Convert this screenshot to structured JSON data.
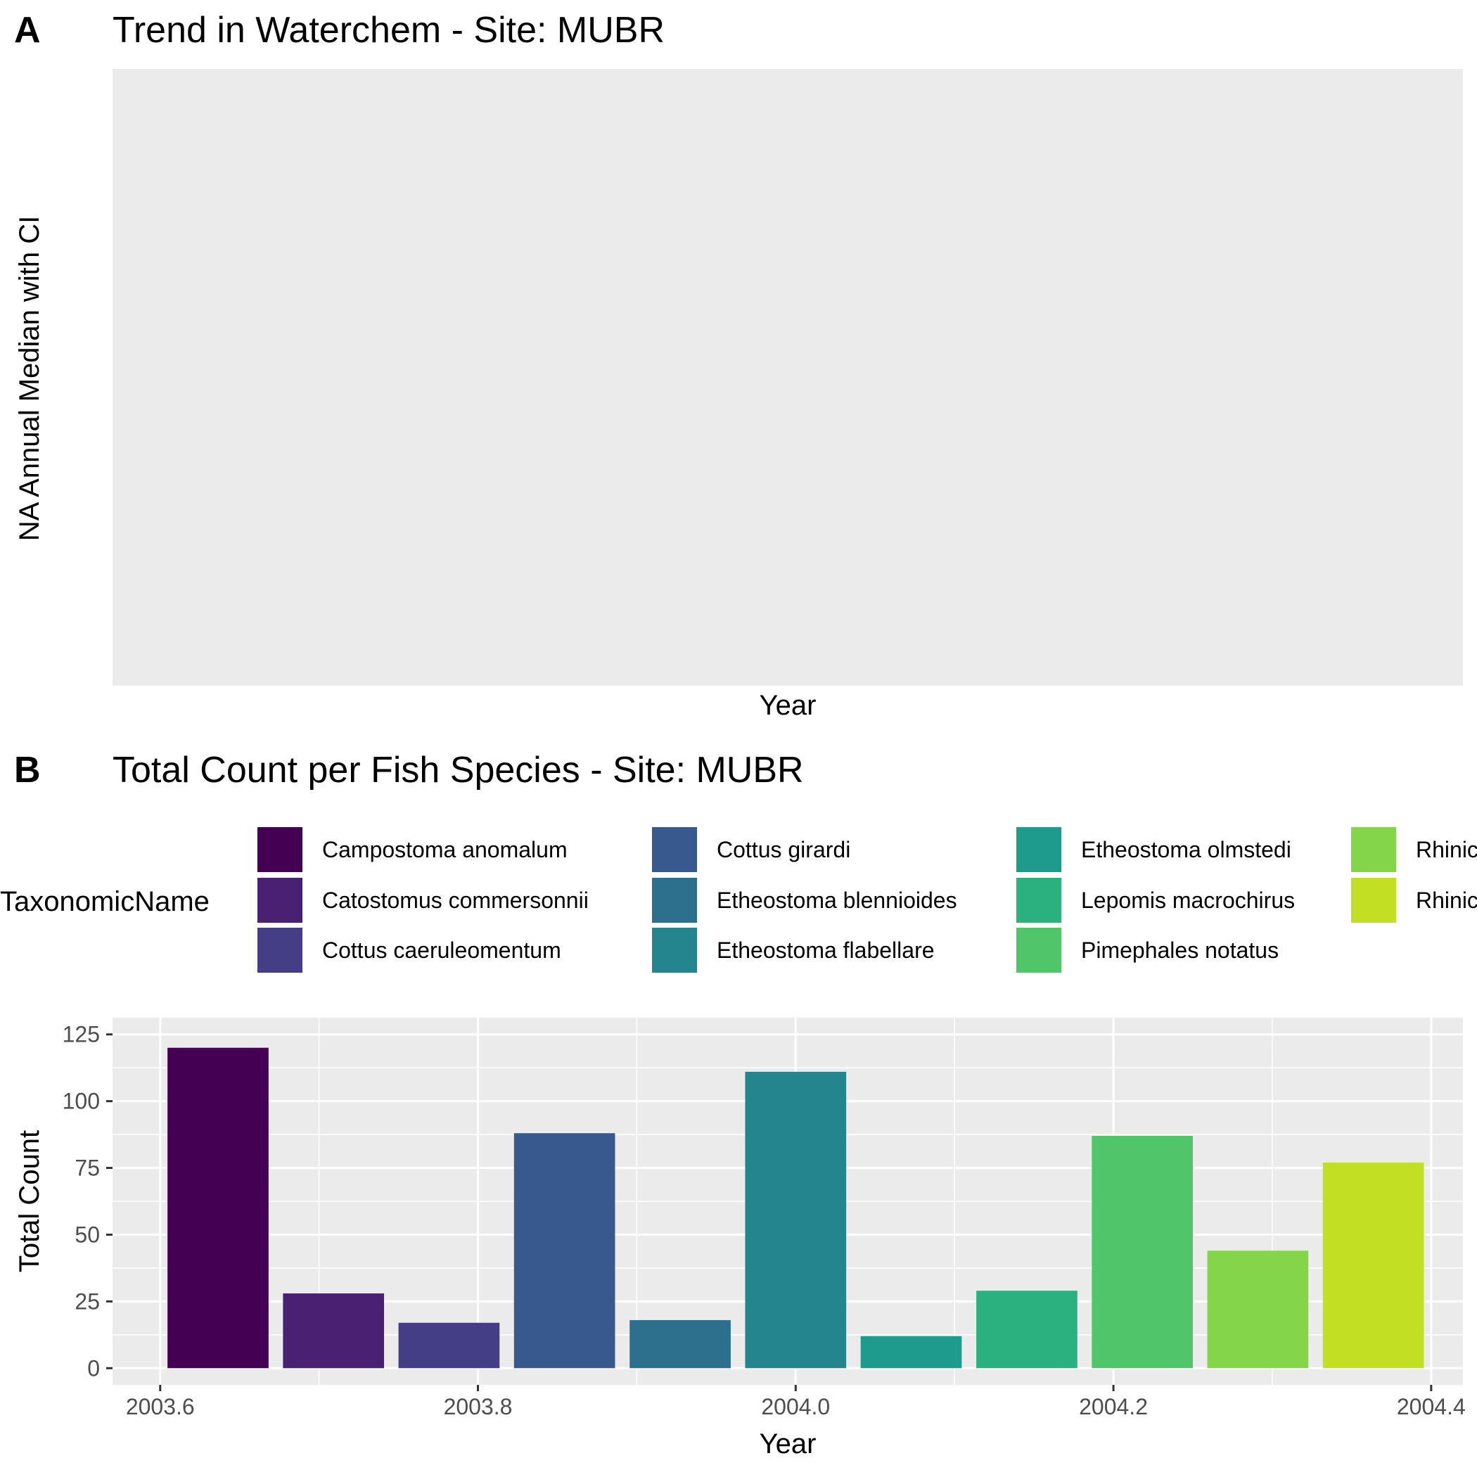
{
  "panel_a": {
    "tag": "A",
    "title": "Trend in Waterchem - Site: MUBR",
    "ylabel": "NA Annual Median with CI",
    "xlabel": "Year"
  },
  "panel_b": {
    "tag": "B",
    "title": "Total Count per Fish Species - Site: MUBR",
    "legend_title": "TaxonomicName",
    "legend_items": [
      {
        "label": "Campostoma anomalum",
        "color": "#440154"
      },
      {
        "label": "Catostomus commersonnii",
        "color": "#482173"
      },
      {
        "label": "Cottus caeruleomentum",
        "color": "#433E85"
      },
      {
        "label": "Cottus girardi",
        "color": "#38598C"
      },
      {
        "label": "Etheostoma blennioides",
        "color": "#2D708E"
      },
      {
        "label": "Etheostoma flabellare",
        "color": "#25858E"
      },
      {
        "label": "Etheostoma olmstedi",
        "color": "#1E9B8A"
      },
      {
        "label": "Lepomis macrochirus",
        "color": "#2BB07F"
      },
      {
        "label": "Pimephales notatus",
        "color": "#51C56A"
      },
      {
        "label": "Rhinic",
        "color": "#85D54A"
      },
      {
        "label": "Rhinic",
        "color": "#C2DF23"
      }
    ]
  },
  "chart_data": [
    {
      "type": "line",
      "title": "Trend in Waterchem - Site: MUBR",
      "xlabel": "Year",
      "ylabel": "NA Annual Median with CI",
      "series": [],
      "grid": false
    },
    {
      "type": "bar",
      "title": "Total Count per Fish Species - Site: MUBR",
      "xlabel": "Year",
      "ylabel": "Total Count",
      "xlim": [
        2003.57,
        2004.42
      ],
      "ylim": [
        0,
        125
      ],
      "x_ticks": [
        "2003.6",
        "2003.8",
        "2004.0",
        "2004.2",
        "2004.4"
      ],
      "y_ticks": [
        "0",
        "25",
        "50",
        "75",
        "100",
        "125"
      ],
      "bar_width": 0.0636,
      "legend_title": "TaxonomicName",
      "legend_position": "top",
      "bars": [
        {
          "x": 2003.6364,
          "value": 120,
          "color": "#440154"
        },
        {
          "x": 2003.7091,
          "value": 28,
          "color": "#482173"
        },
        {
          "x": 2003.7818,
          "value": 17,
          "color": "#433E85"
        },
        {
          "x": 2003.8545,
          "value": 88,
          "color": "#38598C"
        },
        {
          "x": 2003.9273,
          "value": 18,
          "color": "#2D708E"
        },
        {
          "x": 2004.0,
          "value": 111,
          "color": "#25858E"
        },
        {
          "x": 2004.0727,
          "value": 12,
          "color": "#1E9B8A"
        },
        {
          "x": 2004.1455,
          "value": 29,
          "color": "#2BB07F"
        },
        {
          "x": 2004.2182,
          "value": 87,
          "color": "#51C56A"
        },
        {
          "x": 2004.2909,
          "value": 44,
          "color": "#85D54A"
        },
        {
          "x": 2004.3636,
          "value": 77,
          "color": "#C2DF23"
        }
      ],
      "grid": true
    }
  ]
}
